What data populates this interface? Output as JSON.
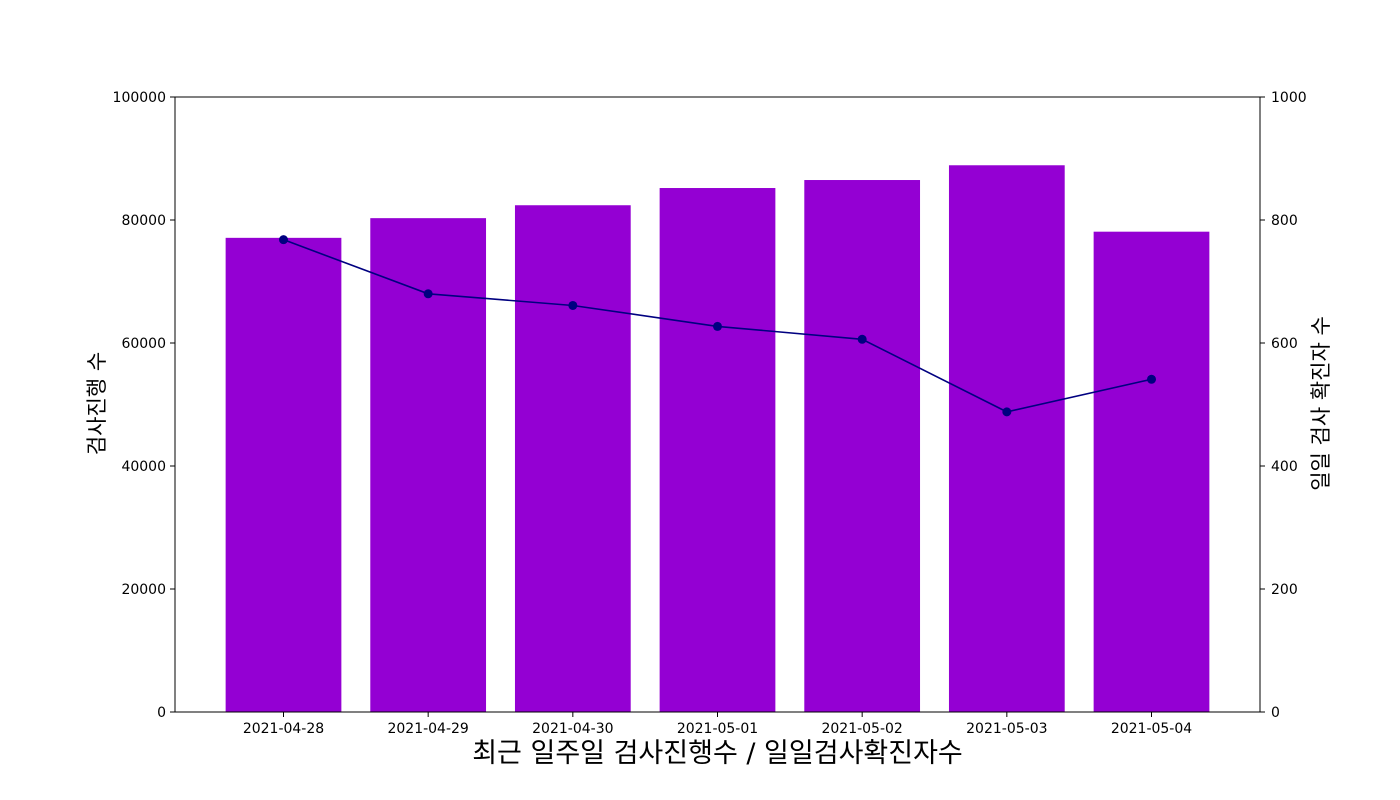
{
  "chart_data": {
    "type": "bar",
    "title": "최근 일주일 검사진행수 / 일일검사확진자수",
    "ylabel_left": "검사진행 수",
    "ylabel_right": "일일 검사 확진자 수",
    "categories": [
      "2021-04-28",
      "2021-04-29",
      "2021-04-30",
      "2021-05-01",
      "2021-05-02",
      "2021-05-03",
      "2021-05-04"
    ],
    "series": [
      {
        "type": "bar",
        "axis": "left",
        "color": "#9400d3",
        "values": [
          77100,
          80300,
          82400,
          85200,
          86500,
          88900,
          78100
        ]
      },
      {
        "type": "line",
        "axis": "right",
        "color": "#000080",
        "marker": "circle",
        "values": [
          768,
          680,
          661,
          627,
          606,
          488,
          541
        ]
      }
    ],
    "ylim_left": [
      0,
      100000
    ],
    "ylim_right": [
      0,
      1000
    ],
    "yticks_left": [
      "0",
      "20000",
      "40000",
      "60000",
      "80000",
      "100000"
    ],
    "yticks_right": [
      "0",
      "200",
      "400",
      "600",
      "800",
      "1000"
    ],
    "grid": false,
    "legend": "none"
  }
}
